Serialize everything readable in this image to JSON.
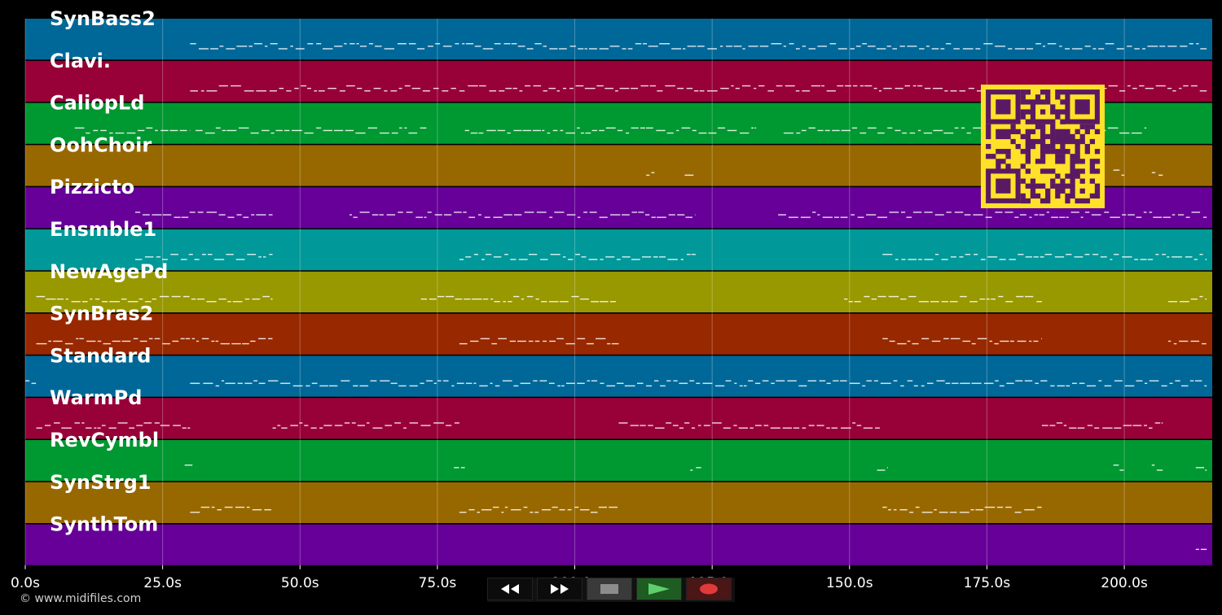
{
  "tracks": [
    {
      "name": "SynBass2",
      "color": "#006898"
    },
    {
      "name": "Clavi.",
      "color": "#980038"
    },
    {
      "name": "CaliopLd",
      "color": "#009830"
    },
    {
      "name": "OohChoir",
      "color": "#986800"
    },
    {
      "name": "Pizzicto",
      "color": "#660098"
    },
    {
      "name": "Ensmble1",
      "color": "#009898"
    },
    {
      "name": "NewAgePd",
      "color": "#989800"
    },
    {
      "name": "SynBras2",
      "color": "#982800"
    },
    {
      "name": "Standard",
      "color": "#006898"
    },
    {
      "name": "WarmPd",
      "color": "#980038"
    },
    {
      "name": "RevCymbl",
      "color": "#009830"
    },
    {
      "name": "SynStrg1",
      "color": "#986800"
    },
    {
      "name": "SynthTom",
      "color": "#660098"
    }
  ],
  "time_axis": {
    "min_seconds": 0,
    "max_seconds": 216,
    "ticks": [
      {
        "value": 0,
        "label": "0.0s"
      },
      {
        "value": 25,
        "label": "25.0s"
      },
      {
        "value": 50,
        "label": "50.0s"
      },
      {
        "value": 75,
        "label": "75.0s"
      },
      {
        "value": 100,
        "label": "100.0s"
      },
      {
        "value": 125,
        "label": "125.0s"
      },
      {
        "value": 150,
        "label": "150.0s"
      },
      {
        "value": 175,
        "label": "175.0s"
      },
      {
        "value": 200,
        "label": "200.0s"
      }
    ]
  },
  "note_segments": [
    [
      [
        30,
        215
      ]
    ],
    [
      [
        30,
        215
      ]
    ],
    [
      [
        9,
        30
      ],
      [
        31,
        73
      ],
      [
        80,
        133
      ],
      [
        138,
        184
      ],
      [
        187,
        204
      ]
    ],
    [
      [
        113,
        114.5
      ],
      [
        120,
        122
      ],
      [
        198,
        200
      ],
      [
        205,
        207
      ]
    ],
    [
      [
        20,
        45
      ],
      [
        59,
        122
      ],
      [
        137,
        215
      ]
    ],
    [
      [
        20,
        45
      ],
      [
        79,
        122
      ],
      [
        156,
        215
      ]
    ],
    [
      [
        2,
        45
      ],
      [
        72,
        108
      ],
      [
        149,
        185
      ],
      [
        208,
        215
      ]
    ],
    [
      [
        2,
        45
      ],
      [
        79,
        108
      ],
      [
        156,
        185
      ],
      [
        208,
        215
      ]
    ],
    [
      [
        0,
        2
      ],
      [
        30,
        215
      ]
    ],
    [
      [
        2,
        30
      ],
      [
        45,
        79
      ],
      [
        108,
        156
      ],
      [
        185,
        207
      ]
    ],
    [
      [
        29,
        31
      ],
      [
        78,
        80
      ],
      [
        121,
        123
      ],
      [
        155,
        157
      ],
      [
        198,
        200
      ],
      [
        205,
        207
      ],
      [
        213,
        215
      ]
    ],
    [
      [
        30,
        45
      ],
      [
        79,
        108
      ],
      [
        156,
        185
      ]
    ],
    [
      [
        213,
        215
      ]
    ]
  ],
  "qr_code": {
    "name": "qr-code",
    "fg": "#5a1a63",
    "bg": "#ffe12a"
  },
  "controls": {
    "rewind": "rewind-icon",
    "fast_forward": "fast-forward-icon",
    "stop": "stop-icon",
    "play": "play-icon",
    "record": "record-icon"
  },
  "footer": {
    "copyright": "© www.midifiles.com"
  }
}
